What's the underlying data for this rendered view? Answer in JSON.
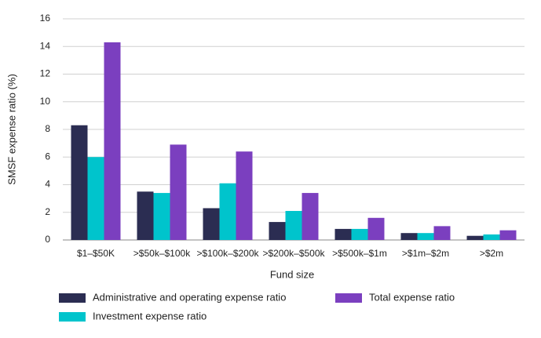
{
  "chart_data": {
    "type": "bar",
    "y_label": "SMSF expense ratio (%)",
    "x_label": "Fund size",
    "categories": [
      "$1–$50K",
      ">$50k–$100k",
      ">$100k–$200k",
      ">$200k–$500k",
      ">$500k–$1m",
      ">$1m–$2m",
      ">$2m"
    ],
    "series": [
      {
        "name": "Administrative and operating expense ratio",
        "color": "#2b2d52",
        "values": [
          8.3,
          3.5,
          2.3,
          1.3,
          0.8,
          0.5,
          0.3
        ]
      },
      {
        "name": "Investment expense ratio",
        "color": "#00c4cc",
        "values": [
          6.0,
          3.4,
          4.1,
          2.1,
          0.8,
          0.5,
          0.4
        ]
      },
      {
        "name": "Total expense ratio",
        "color": "#7b3fbf",
        "values": [
          14.3,
          6.9,
          6.4,
          3.4,
          1.6,
          1.0,
          0.7
        ]
      }
    ],
    "ylim": [
      0,
      16
    ],
    "yticks": [
      0,
      2,
      4,
      6,
      8,
      10,
      12,
      14,
      16
    ],
    "grid": true
  }
}
